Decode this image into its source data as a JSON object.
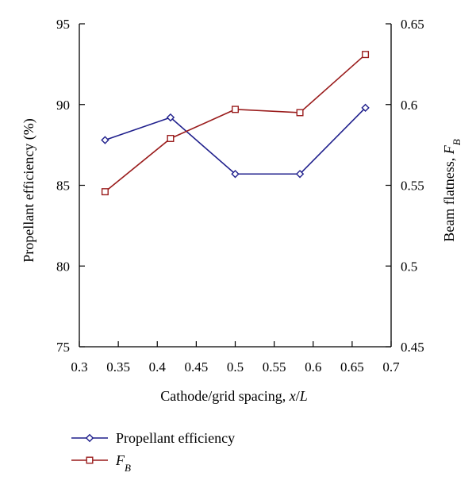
{
  "chart_data": {
    "type": "line",
    "title": "",
    "xlabel": "Cathode/grid spacing, x/L",
    "xlabel_parts": [
      {
        "text": "Cathode/grid spacing, ",
        "italic": false
      },
      {
        "text": "x",
        "italic": true
      },
      {
        "text": "/",
        "italic": false
      },
      {
        "text": "L",
        "italic": true
      }
    ],
    "ylabel_left": "Propellant efficiency (%)",
    "ylabel_right": "Beam flatness, F_B",
    "ylabel_right_parts": [
      {
        "text": "Beam flatness, ",
        "italic": false
      },
      {
        "text": "F",
        "italic": true
      },
      {
        "text": "B",
        "italic": true,
        "sub": true
      }
    ],
    "xlim": [
      0.3,
      0.7
    ],
    "ylim_left": [
      75,
      95
    ],
    "ylim_right": [
      0.45,
      0.65
    ],
    "x_ticks": [
      "0.3",
      "0.35",
      "0.4",
      "0.45",
      "0.5",
      "0.55",
      "0.6",
      "0.65",
      "0.7"
    ],
    "y_ticks_left": [
      "75",
      "80",
      "85",
      "90",
      "95"
    ],
    "y_ticks_right": [
      "0.45",
      "0.5",
      "0.55",
      "0.6",
      "0.65"
    ],
    "grid": false,
    "legend_position": "bottom-left",
    "series": [
      {
        "name": "Propellant efficiency",
        "axis": "left",
        "marker": "diamond",
        "color": "#1f1f8c",
        "x": [
          0.333,
          0.417,
          0.5,
          0.583,
          0.667
        ],
        "y": [
          87.8,
          89.2,
          85.7,
          85.7,
          89.8
        ]
      },
      {
        "name": "F_B",
        "name_parts": [
          {
            "text": "F",
            "italic": true
          },
          {
            "text": "B",
            "italic": true,
            "sub": true
          }
        ],
        "axis": "right",
        "marker": "square",
        "color": "#9a1c1c",
        "x": [
          0.333,
          0.417,
          0.5,
          0.583,
          0.667
        ],
        "y": [
          0.546,
          0.579,
          0.597,
          0.595,
          0.631
        ]
      }
    ]
  }
}
